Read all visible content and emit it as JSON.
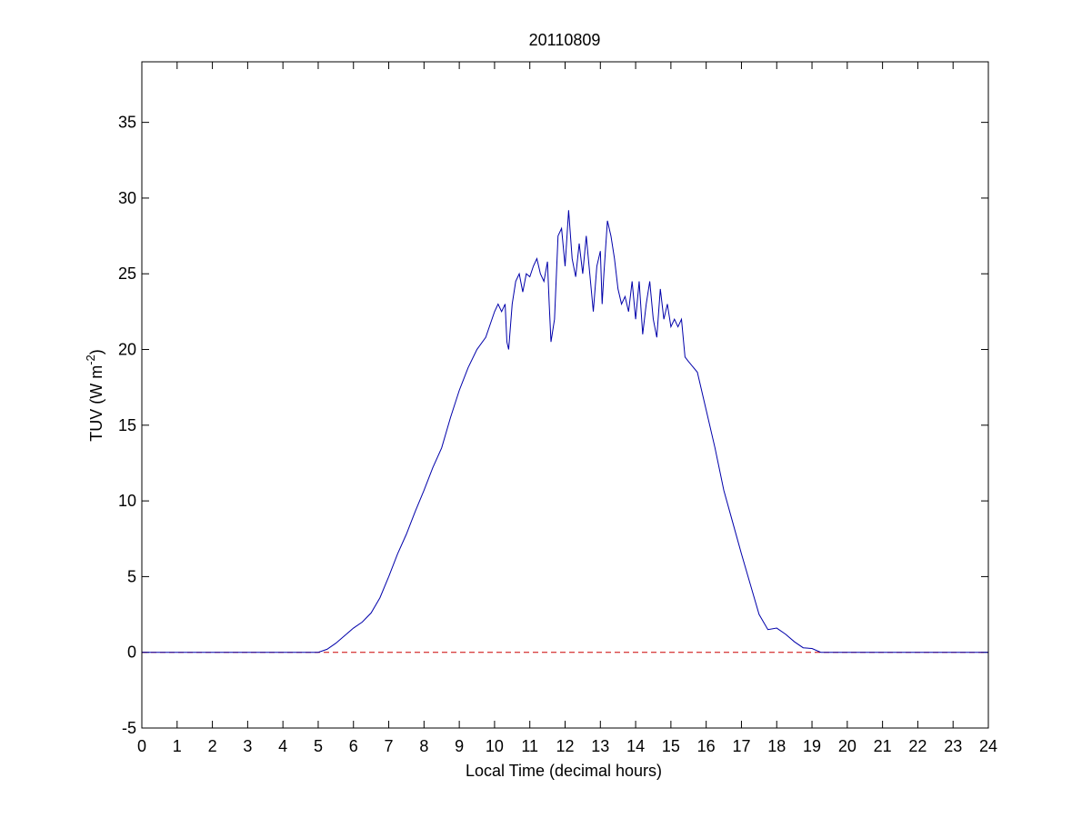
{
  "chart_data": {
    "type": "line",
    "title": "20110809",
    "xlabel": "Local Time (decimal hours)",
    "ylabel": {
      "text": "TUV (W m",
      "sup": "-2",
      "tail": ")"
    },
    "x": [
      0,
      5,
      5.25,
      5.5,
      5.75,
      6,
      6.25,
      6.5,
      6.75,
      7,
      7.25,
      7.5,
      7.75,
      8,
      8.25,
      8.5,
      8.75,
      9,
      9.25,
      9.5,
      9.75,
      10,
      10.1,
      10.2,
      10.3,
      10.35,
      10.4,
      10.5,
      10.6,
      10.7,
      10.8,
      10.9,
      11,
      11.1,
      11.2,
      11.3,
      11.4,
      11.5,
      11.55,
      11.6,
      11.7,
      11.8,
      11.9,
      12,
      12.1,
      12.2,
      12.3,
      12.4,
      12.5,
      12.6,
      12.7,
      12.8,
      12.9,
      13,
      13.05,
      13.1,
      13.2,
      13.3,
      13.4,
      13.5,
      13.6,
      13.7,
      13.8,
      13.9,
      14,
      14.1,
      14.2,
      14.3,
      14.4,
      14.5,
      14.6,
      14.7,
      14.8,
      14.9,
      15,
      15.1,
      15.2,
      15.3,
      15.4,
      15.5,
      15.75,
      16,
      16.25,
      16.5,
      16.75,
      17,
      17.25,
      17.5,
      17.75,
      18,
      18.25,
      18.5,
      18.75,
      19,
      19.25,
      24
    ],
    "series": [
      {
        "color": "#0000aa",
        "values": [
          0,
          0,
          0.2,
          0.6,
          1.1,
          1.6,
          2.0,
          2.6,
          3.6,
          5.0,
          6.5,
          7.8,
          9.3,
          10.7,
          12.2,
          13.5,
          15.5,
          17.3,
          18.8,
          20.0,
          20.8,
          22.5,
          23.0,
          22.5,
          23.0,
          20.5,
          20.0,
          23.0,
          24.5,
          25.0,
          23.8,
          25.0,
          24.8,
          25.5,
          26.0,
          25.0,
          24.5,
          25.8,
          23.0,
          20.5,
          22.0,
          27.5,
          28.0,
          25.5,
          29.2,
          26.0,
          24.8,
          27.0,
          25.0,
          27.5,
          25.0,
          22.5,
          25.5,
          26.5,
          23.0,
          25.0,
          28.5,
          27.5,
          26.0,
          24.0,
          23.0,
          23.5,
          22.5,
          24.5,
          22.0,
          24.5,
          21.0,
          23.0,
          24.5,
          22.0,
          20.8,
          24.0,
          22.0,
          23.0,
          21.5,
          22.0,
          21.5,
          22.0,
          19.5,
          19.2,
          18.5,
          16.0,
          13.5,
          10.7,
          8.6,
          6.5,
          4.5,
          2.5,
          1.5,
          1.6,
          1.2,
          0.7,
          0.3,
          0.25,
          0,
          0
        ]
      }
    ],
    "reference_lines": [
      {
        "y": 0,
        "color": "#cc0000",
        "dashed": true
      }
    ],
    "xlim": [
      0,
      24
    ],
    "xticks": [
      0,
      1,
      2,
      3,
      4,
      5,
      6,
      7,
      8,
      9,
      10,
      11,
      12,
      13,
      14,
      15,
      16,
      17,
      18,
      19,
      20,
      21,
      22,
      23,
      24
    ],
    "ylim": [
      -5,
      39
    ],
    "yticks": [
      -5,
      0,
      5,
      10,
      15,
      20,
      25,
      30,
      35
    ]
  }
}
